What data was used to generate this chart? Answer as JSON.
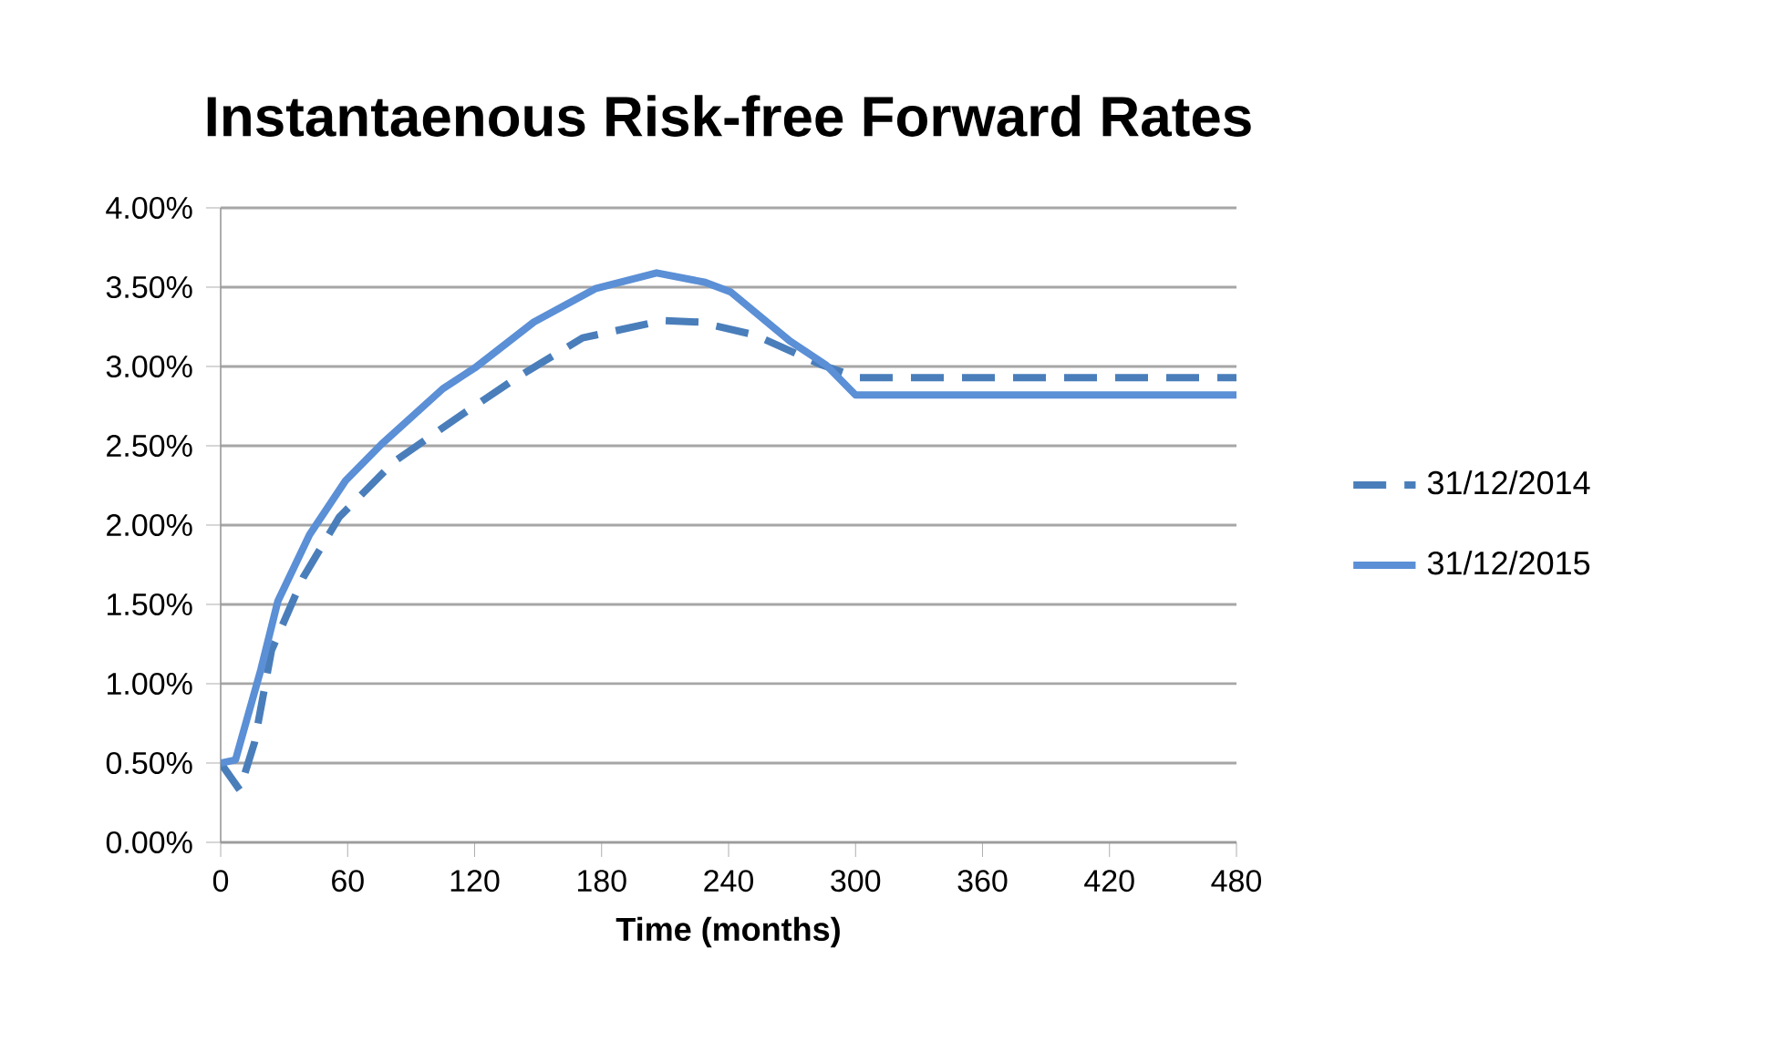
{
  "chart_data": {
    "type": "line",
    "title": "Instantaenous  Risk-free Forward Rates",
    "xlabel": "Time (months)",
    "xlim": [
      0,
      480
    ],
    "xticks": [
      0,
      60,
      120,
      180,
      240,
      300,
      360,
      420,
      480
    ],
    "ylim": [
      0,
      4
    ],
    "yticks": [
      {
        "value": 0,
        "label": "0.00%"
      },
      {
        "value": 0.5,
        "label": "0.50%"
      },
      {
        "value": 1,
        "label": "1.00%"
      },
      {
        "value": 1.5,
        "label": "1.50%"
      },
      {
        "value": 2,
        "label": "2.00%"
      },
      {
        "value": 2.5,
        "label": "2.50%"
      },
      {
        "value": 3,
        "label": "3.00%"
      },
      {
        "value": 3.5,
        "label": "3.50%"
      },
      {
        "value": 4,
        "label": "4.00%"
      }
    ],
    "grid": "y",
    "legend": "right",
    "series": [
      {
        "name": "31/12/2014",
        "color": "#4a7ebb",
        "line_style": "dashed",
        "x": [
          0,
          9,
          16,
          24,
          39,
          56,
          82,
          111,
          140,
          171,
          209,
          226,
          252,
          284,
          301,
          480
        ],
        "values": [
          0.5,
          0.33,
          0.63,
          1.21,
          1.67,
          2.05,
          2.4,
          2.67,
          2.93,
          3.18,
          3.29,
          3.28,
          3.2,
          3.01,
          2.93,
          2.93
        ]
      },
      {
        "name": "31/12/2015",
        "color": "#5b8fd6",
        "line_style": "solid",
        "x": [
          0,
          7,
          19,
          27,
          42,
          59,
          76,
          105,
          120,
          148,
          177,
          206,
          229,
          241,
          269,
          286,
          300,
          480
        ],
        "values": [
          0.5,
          0.52,
          1.09,
          1.52,
          1.94,
          2.28,
          2.51,
          2.86,
          2.99,
          3.28,
          3.49,
          3.59,
          3.53,
          3.47,
          3.16,
          3.01,
          2.82,
          2.82
        ]
      }
    ]
  }
}
